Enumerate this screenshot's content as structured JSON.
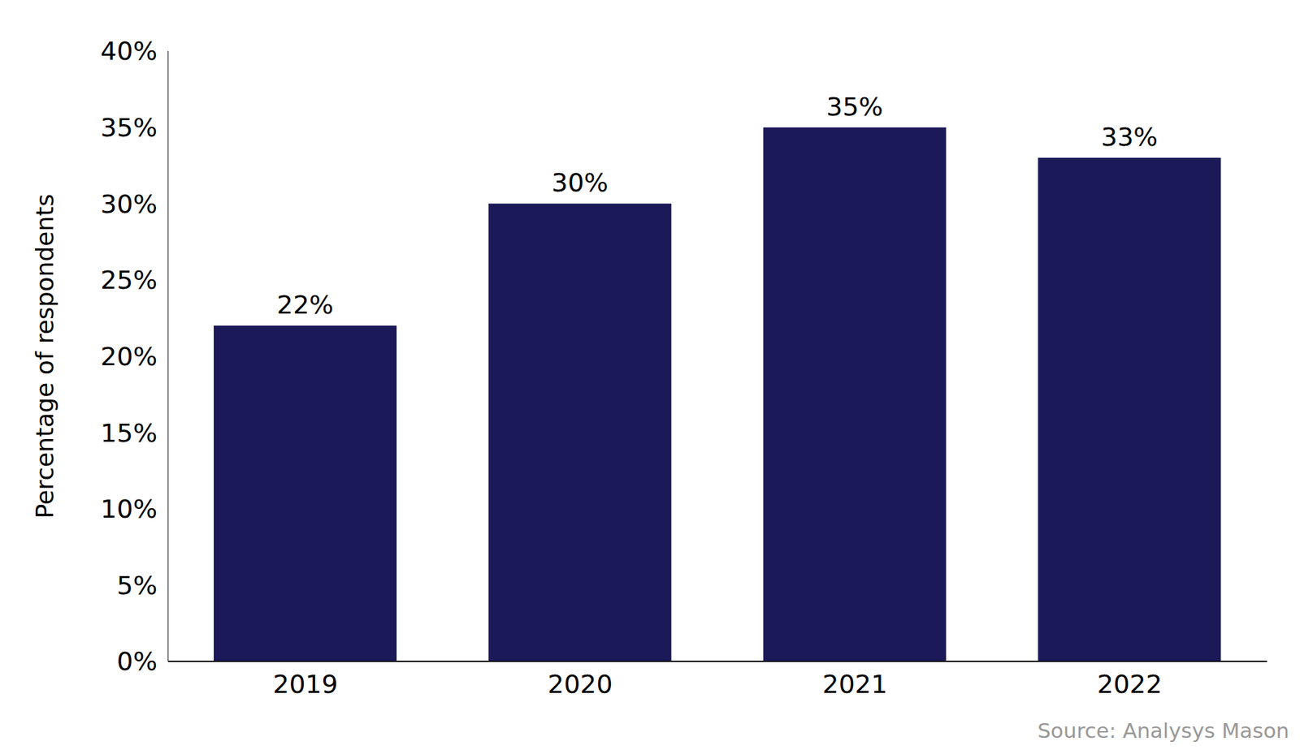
{
  "chart_data": {
    "type": "bar",
    "y_label": "Percentage of respondents",
    "source": "Source: Analysys Mason",
    "categories": [
      "2019",
      "2020",
      "2021",
      "2022"
    ],
    "values": [
      22,
      30,
      35,
      33
    ],
    "value_labels": [
      "22%",
      "30%",
      "35%",
      "33%"
    ],
    "data_labels": true,
    "color": "#1b1958",
    "ylim": [
      0,
      40
    ],
    "yticks": [
      {
        "value": 0,
        "label": "0%"
      },
      {
        "value": 5,
        "label": "5%"
      },
      {
        "value": 10,
        "label": "10%"
      },
      {
        "value": 15,
        "label": "15%"
      },
      {
        "value": 20,
        "label": "20%"
      },
      {
        "value": 25,
        "label": "25%"
      },
      {
        "value": 30,
        "label": "30%"
      },
      {
        "value": 35,
        "label": "35%"
      },
      {
        "value": 40,
        "label": "40%"
      }
    ],
    "grid": false
  }
}
